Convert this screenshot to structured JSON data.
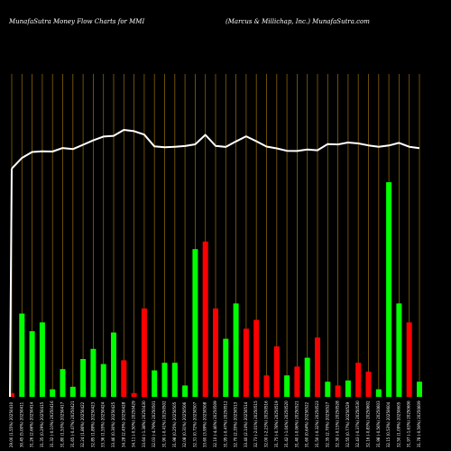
{
  "header": {
    "left": "MunafaSutra  Money Flow  Charts for MMI",
    "right": "(Marcus & Millichap,  Inc.) MunafaSutra.com"
  },
  "colors": {
    "background": "#000000",
    "grid": "#b8860b",
    "up": "#00ff00",
    "down": "#ff0000",
    "line": "#ffffff"
  },
  "chart_data": {
    "type": "bar",
    "title": "",
    "xlabel": "",
    "ylabel": "",
    "grid": "vertical lines",
    "x_labels_rotated": true,
    "categories": [
      "29.00 (1.55%) 20250410",
      "30.45 (5.00%) 20250411",
      "31.26 (2.66%) 20250414",
      "31.35 (0.29%) 20250415",
      "31.32 (-0.10%) 20250416",
      "31.80 (1.53%) 20250417",
      "31.65 (-0.47%) 20250421",
      "32.24 (1.86%) 20250422",
      "32.85 (1.89%) 20250423",
      "33.36 (1.55%) 20250424",
      "33.46 (0.30%) 20250425",
      "34.28 (2.45%) 20250428",
      "34.11 (-0.50%) 20250429",
      "33.64 (-1.38%) 20250430",
      "32.03 (-4.79%) 20250501",
      "31.90 (-0.41%) 20250502",
      "31.98 (0.25%) 20250505",
      "32.08 (0.31%) 20250506",
      "32.31 (0.72%) 20250507",
      "33.60 (3.99%) 20250508",
      "32.10 (-4.46%) 20250509",
      "31.95 (-0.47%) 20250512",
      "32.70 (2.35%) 20250513",
      "33.40 (2.14%) 20250514",
      "32.73 (-2.01%) 20250515",
      "32.00 (-2.23%) 20250516",
      "31.75 (-0.78%) 20250519",
      "31.42 (-1.04%) 20250520",
      "31.40 (-0.06%) 20250521",
      "31.60 (0.64%) 20250522",
      "31.50 (-0.32%) 20250523",
      "32.35 (2.70%) 20250527",
      "32.30 (-0.15%) 20250528",
      "32.55 (0.77%) 20250529",
      "32.43 (-0.37%) 20250530",
      "32.16 (-0.83%) 20250602",
      "31.98 (-0.56%) 20250603",
      "32.15 (0.53%) 20250604",
      "32.50 (1.09%) 20250605",
      "31.97 (-1.63%) 20250606",
      "31.78 (-0.59%) 20250609"
    ],
    "series": [
      {
        "kind": "money-flow-bars",
        "values": [
          3,
          66,
          52,
          59,
          6,
          22,
          8,
          30,
          38,
          26,
          51,
          29,
          3,
          70,
          21,
          27,
          27,
          9,
          117,
          123,
          70,
          46,
          74,
          54,
          61,
          17,
          40,
          17,
          24,
          31,
          47,
          12,
          9,
          13,
          27,
          20,
          6,
          170,
          74,
          59,
          12
        ],
        "directions": [
          "down",
          "up",
          "up",
          "up",
          "up",
          "up",
          "up",
          "up",
          "up",
          "up",
          "up",
          "down",
          "down",
          "down",
          "up",
          "up",
          "up",
          "up",
          "up",
          "down",
          "down",
          "up",
          "up",
          "down",
          "down",
          "down",
          "down",
          "up",
          "down",
          "up",
          "down",
          "up",
          "down",
          "up",
          "down",
          "down",
          "up",
          "up",
          "up",
          "down",
          "up"
        ]
      },
      {
        "kind": "price-line",
        "values": [
          29.0,
          30.45,
          31.26,
          31.35,
          31.32,
          31.8,
          31.65,
          32.24,
          32.85,
          33.36,
          33.46,
          34.28,
          34.11,
          33.64,
          32.03,
          31.9,
          31.98,
          32.08,
          32.31,
          33.6,
          32.1,
          31.95,
          32.7,
          33.4,
          32.73,
          32.0,
          31.75,
          31.42,
          31.4,
          31.6,
          31.5,
          32.35,
          32.3,
          32.55,
          32.43,
          32.16,
          31.98,
          32.15,
          32.5,
          31.97,
          31.78
        ]
      }
    ],
    "bar_ylim": [
      0,
      200
    ],
    "line_ylim": [
      20,
      36
    ]
  }
}
